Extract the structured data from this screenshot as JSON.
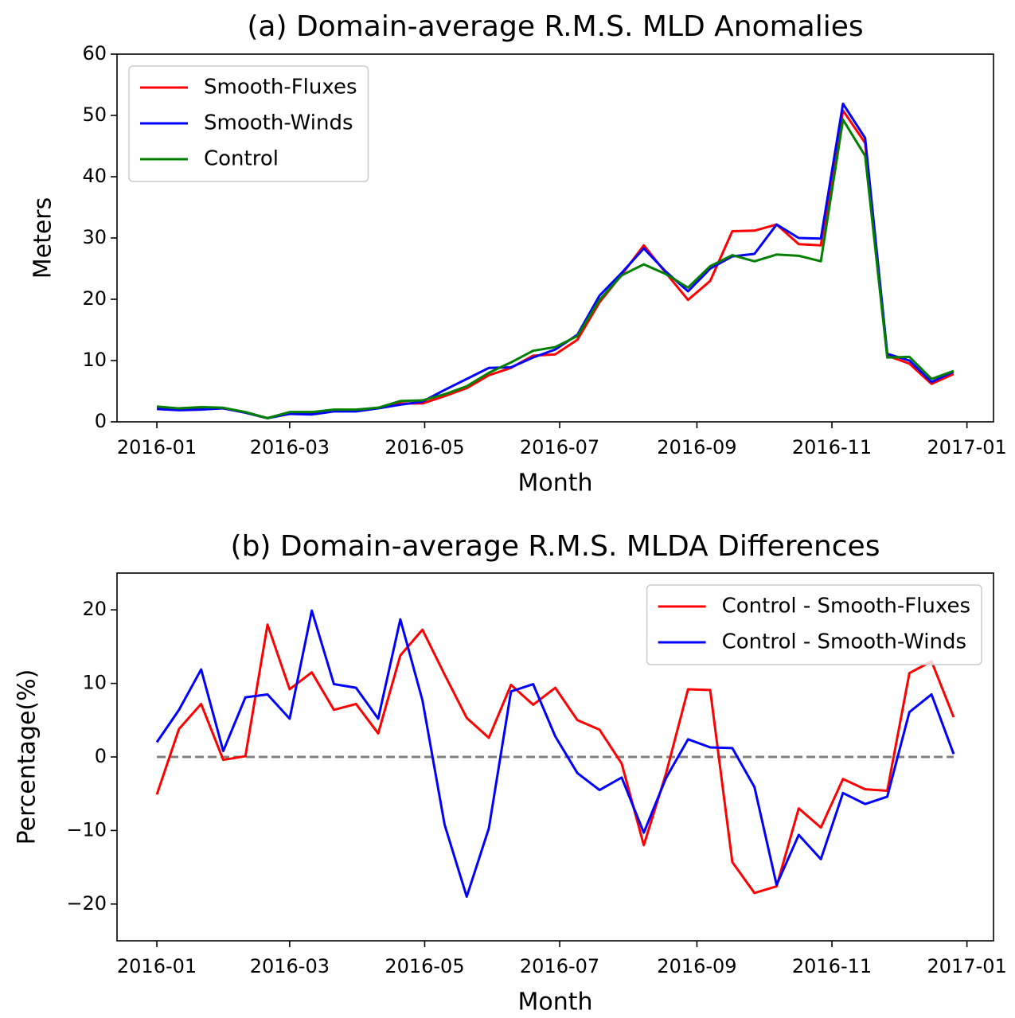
{
  "chart_data": [
    {
      "type": "line",
      "title": "(a) Domain-average R.M.S. MLD Anomalies",
      "x_label": "Month",
      "y_label": "Meters",
      "x": [
        0,
        10,
        20,
        30,
        40,
        50,
        60,
        70,
        80,
        90,
        100,
        110,
        120,
        130,
        140,
        150,
        160,
        170,
        180,
        190,
        200,
        210,
        220,
        230,
        240,
        250,
        260,
        270,
        280,
        290,
        300,
        310,
        320,
        330,
        340,
        350,
        360
      ],
      "series": [
        {
          "name": "Smooth-Fluxes",
          "color": "#ff0000",
          "values": [
            2.3,
            2.1,
            2.2,
            2.2,
            1.5,
            0.6,
            1.5,
            1.5,
            1.9,
            1.9,
            2.3,
            3.0,
            3.0,
            4.2,
            5.5,
            7.6,
            8.8,
            10.8,
            11.0,
            13.4,
            19.5,
            24.0,
            28.8,
            24.3,
            19.9,
            23.0,
            31.1,
            31.2,
            32.2,
            29.0,
            28.8,
            50.8,
            45.5,
            10.8,
            9.5,
            6.2,
            7.8
          ]
        },
        {
          "name": "Smooth-Winds",
          "color": "#0000ff",
          "values": [
            2.1,
            1.9,
            2.0,
            2.2,
            1.5,
            0.6,
            1.3,
            1.2,
            1.7,
            1.7,
            2.2,
            2.8,
            3.3,
            5.2,
            7.0,
            8.8,
            8.9,
            10.5,
            11.8,
            14.2,
            20.6,
            24.3,
            28.3,
            24.5,
            21.3,
            25.0,
            27.0,
            27.4,
            32.2,
            30.0,
            29.9,
            51.9,
            46.3,
            11.1,
            10.0,
            6.5,
            8.2
          ]
        },
        {
          "name": "Control",
          "color": "#008000",
          "values": [
            2.5,
            2.2,
            2.4,
            2.3,
            1.6,
            0.6,
            1.6,
            1.6,
            2.0,
            2.0,
            2.3,
            3.4,
            3.5,
            4.5,
            5.8,
            8.0,
            9.7,
            11.6,
            12.2,
            14.0,
            19.9,
            23.9,
            25.7,
            24.1,
            21.9,
            25.4,
            27.2,
            26.2,
            27.3,
            27.1,
            26.2,
            49.3,
            43.4,
            10.5,
            10.6,
            7.0,
            8.3
          ]
        }
      ],
      "xlim": [
        -18,
        378
      ],
      "xticks": [
        {
          "value": 0,
          "label": "2016-01"
        },
        {
          "value": 60,
          "label": "2016-03"
        },
        {
          "value": 121,
          "label": "2016-05"
        },
        {
          "value": 182,
          "label": "2016-07"
        },
        {
          "value": 244,
          "label": "2016-09"
        },
        {
          "value": 305,
          "label": "2016-11"
        },
        {
          "value": 366,
          "label": "2017-01"
        }
      ],
      "ylim": [
        0,
        60
      ],
      "yticks": [
        0,
        10,
        20,
        30,
        40,
        50,
        60
      ],
      "legend": "upper left"
    },
    {
      "type": "line",
      "title": "(b) Domain-average R.M.S. MLDA Differences",
      "x_label": "Month",
      "y_label": "Percentage(%)",
      "x": [
        0,
        10,
        20,
        30,
        40,
        50,
        60,
        70,
        80,
        90,
        100,
        110,
        120,
        130,
        140,
        150,
        160,
        170,
        180,
        190,
        200,
        210,
        220,
        230,
        240,
        250,
        260,
        270,
        280,
        290,
        300,
        310,
        320,
        330,
        340,
        350,
        360
      ],
      "series": [
        {
          "name": "Control - Smooth-Fluxes",
          "color": "#ff0000",
          "values": [
            -5.1,
            3.8,
            7.2,
            -0.4,
            0.1,
            18.0,
            9.2,
            11.5,
            6.4,
            7.2,
            3.2,
            13.8,
            17.3,
            11.2,
            5.3,
            2.6,
            9.8,
            7.1,
            9.4,
            5.0,
            3.7,
            -0.9,
            -12.0,
            -2.3,
            9.2,
            9.1,
            -14.3,
            -18.5,
            -17.6,
            -7.0,
            -9.6,
            -3.0,
            -4.4,
            -4.6,
            11.4,
            13.0,
            5.4
          ]
        },
        {
          "name": "Control - Smooth-Winds",
          "color": "#0000ff",
          "values": [
            2.0,
            6.4,
            11.9,
            0.8,
            8.1,
            8.5,
            5.2,
            19.9,
            9.9,
            9.4,
            5.2,
            18.7,
            7.7,
            -9.2,
            -19.0,
            -9.7,
            8.9,
            9.9,
            2.8,
            -2.2,
            -4.5,
            -2.8,
            -10.3,
            -2.9,
            2.4,
            1.3,
            1.2,
            -4.1,
            -17.4,
            -10.6,
            -13.9,
            -4.9,
            -6.4,
            -5.4,
            6.1,
            8.5,
            0.4
          ]
        }
      ],
      "reference_line": {
        "value": 0,
        "color": "#808080",
        "style": "dashed"
      },
      "xlim": [
        -18,
        378
      ],
      "xticks": [
        {
          "value": 0,
          "label": "2016-01"
        },
        {
          "value": 60,
          "label": "2016-03"
        },
        {
          "value": 121,
          "label": "2016-05"
        },
        {
          "value": 182,
          "label": "2016-07"
        },
        {
          "value": 244,
          "label": "2016-09"
        },
        {
          "value": 305,
          "label": "2016-11"
        },
        {
          "value": 366,
          "label": "2017-01"
        }
      ],
      "ylim": [
        -25,
        25
      ],
      "yticks": [
        {
          "value": -20,
          "label": "−20"
        },
        {
          "value": -10,
          "label": "−10"
        },
        0,
        10,
        20
      ],
      "legend": "upper right"
    }
  ]
}
